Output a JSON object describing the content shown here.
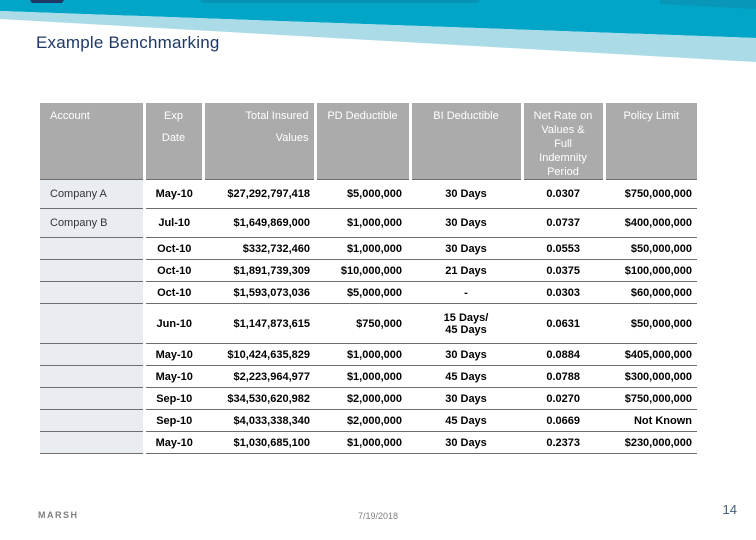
{
  "slide": {
    "title": "Example Benchmarking"
  },
  "table": {
    "columns": [
      {
        "label": "Account"
      },
      {
        "label": "Exp\nDate"
      },
      {
        "label": "Total Insured\nValues"
      },
      {
        "label": "PD Deductible"
      },
      {
        "label": "BI Deductible"
      },
      {
        "label": "Net Rate on\nValues &\nFull\nIndemnity\nPeriod"
      },
      {
        "label": "Policy Limit"
      }
    ],
    "rows": [
      [
        "Company A",
        "May-10",
        "$27,292,797,418",
        "$5,000,000",
        "30 Days",
        "0.0307",
        "$750,000,000"
      ],
      [
        "Company B",
        "Jul-10",
        "$1,649,869,000",
        "$1,000,000",
        "30 Days",
        "0.0737",
        "$400,000,000"
      ],
      [
        "",
        "Oct-10",
        "$332,732,460",
        "$1,000,000",
        "30 Days",
        "0.0553",
        "$50,000,000"
      ],
      [
        "",
        "Oct-10",
        "$1,891,739,309",
        "$10,000,000",
        "21 Days",
        "0.0375",
        "$100,000,000"
      ],
      [
        "",
        "Oct-10",
        "$1,593,073,036",
        "$5,000,000",
        "-",
        "0.0303",
        "$60,000,000"
      ],
      [
        "",
        "Jun-10",
        "$1,147,873,615",
        "$750,000",
        "15 Days/\n45 Days",
        "0.0631",
        "$50,000,000"
      ],
      [
        "",
        "May-10",
        "$10,424,635,829",
        "$1,000,000",
        "30 Days",
        "0.0884",
        "$405,000,000"
      ],
      [
        "",
        "May-10",
        "$2,223,964,977",
        "$1,000,000",
        "45 Days",
        "0.0788",
        "$300,000,000"
      ],
      [
        "",
        "Sep-10",
        "$34,530,620,982",
        "$2,000,000",
        "30 Days",
        "0.0270",
        "$750,000,000"
      ],
      [
        "",
        "Sep-10",
        "$4,033,338,340",
        "$2,000,000",
        "45 Days",
        "0.0669",
        "Not Known"
      ],
      [
        "",
        "May-10",
        "$1,030,685,100",
        "$1,000,000",
        "30 Days",
        "0.2373",
        "$230,000,000"
      ]
    ]
  },
  "footer": {
    "brand": "MARSH",
    "date": "7/19/2018",
    "page_number": "14"
  },
  "colors": {
    "teal-band": "#00a5c8",
    "light-band": "#abdbe7",
    "navy-accent": "#1f3864",
    "title-color": "#1f3864",
    "header-bg": "#ababab",
    "col1-bg": "#e9edf1",
    "line": "#6e6e6e",
    "page-num-color": "#3f5d7d"
  }
}
